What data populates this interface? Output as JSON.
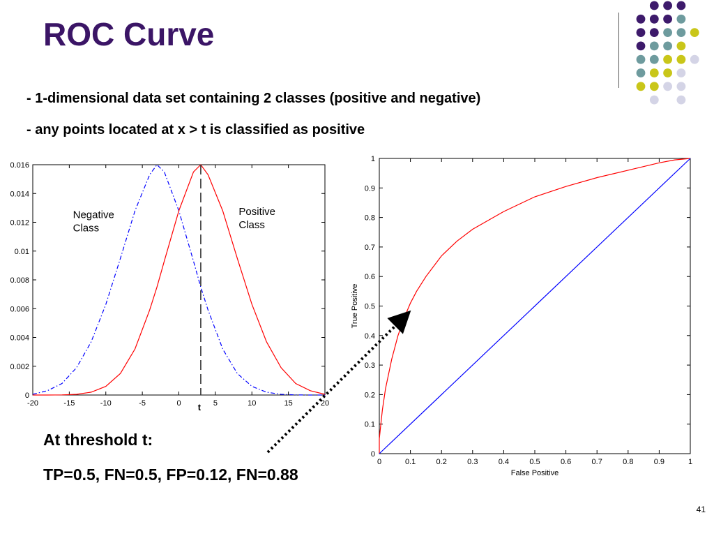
{
  "slide": {
    "title": "ROC Curve",
    "bullets": [
      "- 1-dimensional data set containing 2 classes (positive and negative)",
      "- any points located at x > t is classified as positive"
    ],
    "threshold_heading": "At threshold t:",
    "threshold_values": "TP=0.5, FN=0.5, FP=0.12, FN=0.88",
    "page_number": "41"
  },
  "colors": {
    "title": "#3b1566",
    "positive_curve": "#ff0000",
    "negative_curve": "#0000ff",
    "diagonal": "#0000ff",
    "dot_purple": "#3d1a6b",
    "dot_teal": "#6e9b9e",
    "dot_yellow": "#c9c619",
    "dot_lavender": "#d4d4e6"
  },
  "chart_data": [
    {
      "type": "line",
      "title": "",
      "xlabel": "",
      "ylabel": "",
      "xlim": [
        -20,
        20
      ],
      "ylim": [
        0,
        0.016
      ],
      "xticks": [
        -20,
        -15,
        -10,
        -5,
        0,
        5,
        10,
        15,
        20
      ],
      "yticks": [
        0,
        0.002,
        0.004,
        0.006,
        0.008,
        0.01,
        0.012,
        0.014,
        0.016
      ],
      "ytick_labels": [
        "0",
        "0.002",
        "0.004",
        "0.006",
        "0.008",
        "0.01",
        "0.012",
        "0.014",
        "0.016"
      ],
      "grid": false,
      "x": [
        -20,
        -18,
        -16,
        -14,
        -12,
        -10,
        -8,
        -6,
        -4,
        -3,
        -2,
        0,
        2,
        3,
        4,
        6,
        8,
        10,
        12,
        14,
        16,
        18,
        20
      ],
      "series": [
        {
          "name": "Negative Class",
          "style": "dash-dot",
          "color": "#0000ff",
          "values": [
            5e-05,
            0.0003,
            0.0008,
            0.0019,
            0.0037,
            0.0063,
            0.0095,
            0.0128,
            0.0153,
            0.016,
            0.0155,
            0.0128,
            0.0093,
            0.0075,
            0.0059,
            0.0032,
            0.0015,
            0.0006,
            0.0002,
            5e-05,
            1e-05,
            0,
            0
          ]
        },
        {
          "name": "Positive Class",
          "style": "solid",
          "color": "#ff0000",
          "values": [
            0,
            0,
            1e-05,
            5e-05,
            0.0002,
            0.0006,
            0.0015,
            0.0032,
            0.0059,
            0.0075,
            0.0093,
            0.0128,
            0.0155,
            0.016,
            0.0153,
            0.0128,
            0.0095,
            0.0063,
            0.0037,
            0.0019,
            0.0008,
            0.0003,
            5e-05
          ]
        }
      ],
      "threshold": {
        "label": "t",
        "x": 3
      },
      "annotations": [
        {
          "lines": [
            "Negative",
            "Class"
          ],
          "x": -14.5,
          "y": 0.0123
        },
        {
          "lines": [
            "Positive",
            "Class"
          ],
          "x": 8.2,
          "y": 0.0125
        }
      ]
    },
    {
      "type": "line",
      "title": "",
      "xlabel": "False Positive",
      "ylabel": "True Positive",
      "xlim": [
        0,
        1
      ],
      "ylim": [
        0,
        1
      ],
      "xticks": [
        0,
        0.1,
        0.2,
        0.3,
        0.4,
        0.5,
        0.6,
        0.7,
        0.8,
        0.9,
        1
      ],
      "yticks": [
        0,
        0.1,
        0.2,
        0.3,
        0.4,
        0.5,
        0.6,
        0.7,
        0.8,
        0.9,
        1
      ],
      "grid": false,
      "series": [
        {
          "name": "",
          "color": "#ff0000",
          "x": [
            0,
            0.0,
            0.005,
            0.01,
            0.02,
            0.04,
            0.06,
            0.08,
            0.1,
            0.12,
            0.15,
            0.2,
            0.25,
            0.3,
            0.4,
            0.5,
            0.6,
            0.7,
            0.8,
            0.9,
            0.95,
            1.0
          ],
          "y": [
            0,
            0.05,
            0.1,
            0.15,
            0.22,
            0.32,
            0.4,
            0.46,
            0.51,
            0.55,
            0.6,
            0.67,
            0.72,
            0.76,
            0.82,
            0.87,
            0.905,
            0.935,
            0.96,
            0.985,
            0.995,
            1.0
          ]
        },
        {
          "name": "",
          "color": "#0000ff",
          "x": [
            0,
            1
          ],
          "y": [
            0,
            1
          ]
        }
      ]
    }
  ]
}
